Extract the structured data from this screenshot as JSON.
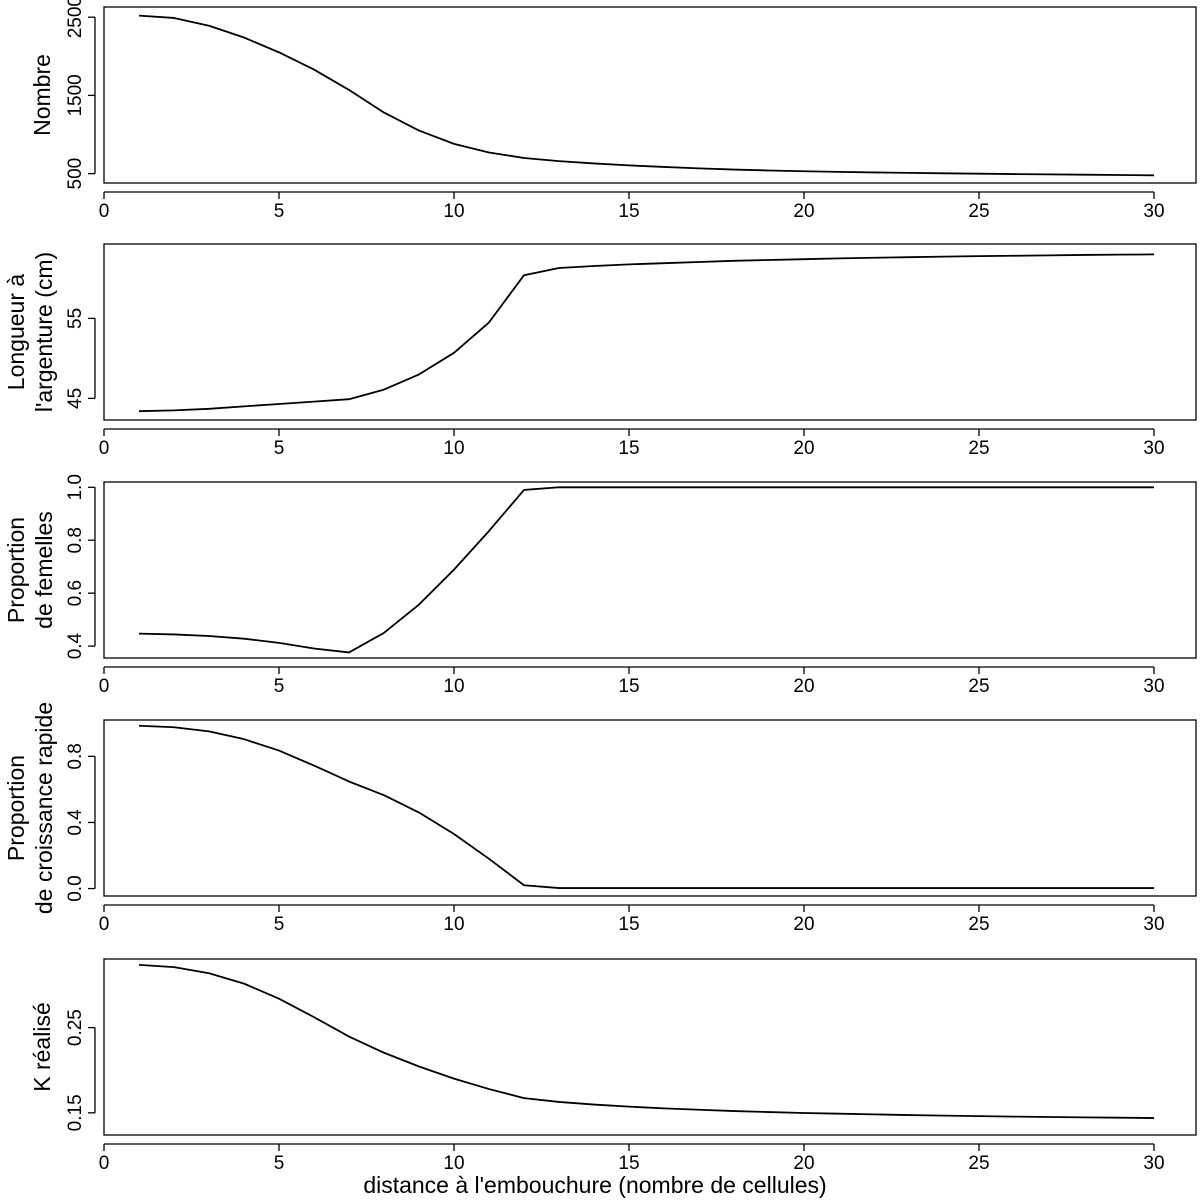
{
  "xlabel": "distance à l'embouchure (nombre de cellules)",
  "chart_data": [
    {
      "type": "line",
      "title": "",
      "ylabel_lines": [
        "Nombre"
      ],
      "xlim": [
        0,
        31.2
      ],
      "ylim": [
        380,
        2630
      ],
      "xticks": [
        "0",
        "5",
        "10",
        "15",
        "20",
        "25",
        "30"
      ],
      "yticks": [
        "500",
        "1500",
        "2500"
      ],
      "ytick_values": [
        500,
        1500,
        2500
      ],
      "x": [
        1,
        2,
        3,
        4,
        5,
        6,
        7,
        8,
        9,
        10,
        11,
        12,
        13,
        14,
        15,
        16,
        17,
        18,
        19,
        20,
        21,
        22,
        23,
        24,
        25,
        26,
        27,
        28,
        29,
        30
      ],
      "values": [
        2520,
        2490,
        2390,
        2240,
        2050,
        1830,
        1570,
        1280,
        1050,
        880,
        770,
        700,
        660,
        630,
        605,
        585,
        567,
        552,
        540,
        530,
        522,
        515,
        509,
        504,
        499,
        494,
        490,
        486,
        482,
        478
      ]
    },
    {
      "type": "line",
      "title": "",
      "ylabel_lines": [
        "Longueur à",
        "l'argenture (cm)"
      ],
      "xlim": [
        0,
        31.2
      ],
      "ylim": [
        42.3,
        64.3
      ],
      "xticks": [
        "0",
        "5",
        "10",
        "15",
        "20",
        "25",
        "30"
      ],
      "yticks": [
        "45",
        "55"
      ],
      "ytick_values": [
        45,
        55
      ],
      "x": [
        1,
        2,
        3,
        4,
        5,
        6,
        7,
        8,
        9,
        10,
        11,
        12,
        13,
        14,
        15,
        16,
        17,
        18,
        19,
        20,
        21,
        22,
        23,
        24,
        25,
        26,
        27,
        28,
        29,
        30
      ],
      "values": [
        43.4,
        43.5,
        43.7,
        44.0,
        44.3,
        44.6,
        44.9,
        46.1,
        48.0,
        50.7,
        54.5,
        60.4,
        61.3,
        61.55,
        61.75,
        61.9,
        62.05,
        62.2,
        62.3,
        62.4,
        62.5,
        62.58,
        62.65,
        62.72,
        62.78,
        62.83,
        62.88,
        62.93,
        62.97,
        63.0
      ]
    },
    {
      "type": "line",
      "title": "",
      "ylabel_lines": [
        "Proportion",
        "de femelles"
      ],
      "xlim": [
        0,
        31.2
      ],
      "ylim": [
        0.355,
        1.02
      ],
      "xticks": [
        "0",
        "5",
        "10",
        "15",
        "20",
        "25",
        "30"
      ],
      "yticks": [
        "0.4",
        "0.6",
        "0.8",
        "1.0"
      ],
      "ytick_values": [
        0.4,
        0.6,
        0.8,
        1.0
      ],
      "x": [
        1,
        2,
        3,
        4,
        5,
        6,
        7,
        8,
        9,
        10,
        11,
        12,
        13,
        14,
        15,
        16,
        17,
        18,
        19,
        20,
        21,
        22,
        23,
        24,
        25,
        26,
        27,
        28,
        29,
        30
      ],
      "values": [
        0.447,
        0.444,
        0.438,
        0.428,
        0.412,
        0.391,
        0.376,
        0.45,
        0.557,
        0.689,
        0.835,
        0.99,
        1.0,
        1.0,
        1.0,
        1.0,
        1.0,
        1.0,
        1.0,
        1.0,
        1.0,
        1.0,
        1.0,
        1.0,
        1.0,
        1.0,
        1.0,
        1.0,
        1.0,
        1.0
      ]
    },
    {
      "type": "line",
      "title": "",
      "ylabel_lines": [
        "Proportion",
        "de croissance rapide"
      ],
      "xlim": [
        0,
        31.2
      ],
      "ylim": [
        -0.045,
        1.02
      ],
      "xticks": [
        "0",
        "5",
        "10",
        "15",
        "20",
        "25",
        "30"
      ],
      "yticks": [
        "0.0",
        "0.4",
        "0.8"
      ],
      "ytick_values": [
        0.0,
        0.4,
        0.8
      ],
      "x": [
        1,
        2,
        3,
        4,
        5,
        6,
        7,
        8,
        9,
        10,
        11,
        12,
        13,
        14,
        15,
        16,
        17,
        18,
        19,
        20,
        21,
        22,
        23,
        24,
        25,
        26,
        27,
        28,
        29,
        30
      ],
      "values": [
        0.985,
        0.976,
        0.951,
        0.904,
        0.835,
        0.744,
        0.648,
        0.565,
        0.46,
        0.33,
        0.18,
        0.02,
        0.003,
        0.003,
        0.003,
        0.003,
        0.003,
        0.003,
        0.003,
        0.003,
        0.003,
        0.003,
        0.003,
        0.003,
        0.003,
        0.003,
        0.003,
        0.003,
        0.003,
        0.003
      ]
    },
    {
      "type": "line",
      "title": "",
      "ylabel_lines": [
        "K réalisé"
      ],
      "xlim": [
        0,
        31.2
      ],
      "ylim": [
        0.124,
        0.3305
      ],
      "xticks": [
        "0",
        "5",
        "10",
        "15",
        "20",
        "25",
        "30"
      ],
      "yticks": [
        "0.15",
        "0.25"
      ],
      "ytick_values": [
        0.15,
        0.25
      ],
      "x": [
        1,
        2,
        3,
        4,
        5,
        6,
        7,
        8,
        9,
        10,
        11,
        12,
        13,
        14,
        15,
        16,
        17,
        18,
        19,
        20,
        21,
        22,
        23,
        24,
        25,
        26,
        27,
        28,
        29,
        30
      ],
      "values": [
        0.3236,
        0.321,
        0.3138,
        0.3016,
        0.2839,
        0.2623,
        0.2395,
        0.2205,
        0.2044,
        0.1901,
        0.1779,
        0.1673,
        0.1628,
        0.1597,
        0.1573,
        0.1552,
        0.1536,
        0.1521,
        0.1509,
        0.1498,
        0.149,
        0.1482,
        0.1474,
        0.1467,
        0.1461,
        0.1456,
        0.1451,
        0.1447,
        0.1443,
        0.1439
      ]
    }
  ]
}
